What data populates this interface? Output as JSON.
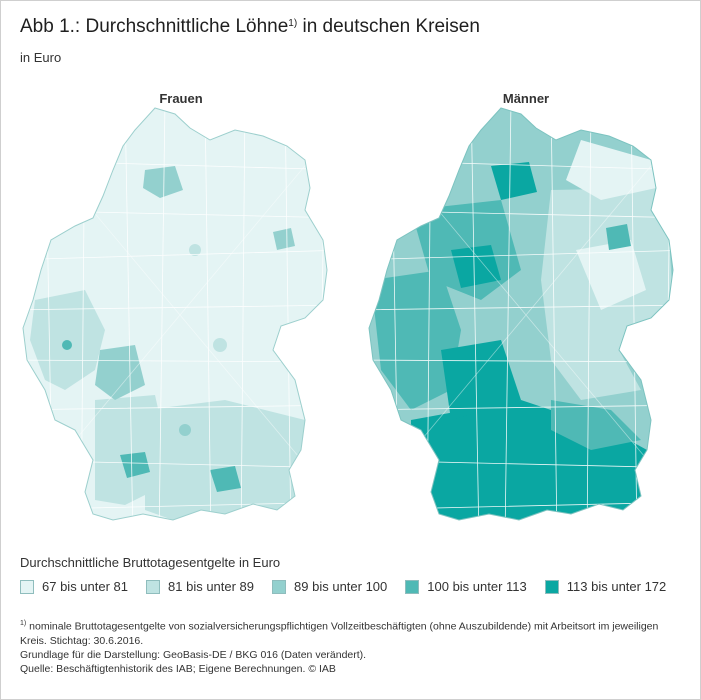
{
  "header": {
    "title": "Abb 1.: Durchschnittliche Löhne",
    "title_sup": "1)",
    "title_rest": " in deutschen Kreisen",
    "subtitle": "in Euro"
  },
  "maps": {
    "left_label": "Frauen",
    "right_label": "Männer"
  },
  "legend": {
    "title": "Durchschnittliche Bruttotagesentgelte in Euro",
    "items": [
      {
        "label": "67 bis unter 81",
        "color": "#e4f4f4"
      },
      {
        "label": "81 bis unter 89",
        "color": "#bfe3e2"
      },
      {
        "label": "89 bis unter 100",
        "color": "#93d0ce"
      },
      {
        "label": "100 bis unter 113",
        "color": "#4fb9b5"
      },
      {
        "label": "113 bis unter 172",
        "color": "#0aa7a2"
      }
    ]
  },
  "notes": {
    "sup": "1)",
    "line1": " nominale Bruttotagesentgelte von sozialversicherungspflichtigen Vollzeitbeschäftigten (ohne Auszubildende) mit Arbeitsort im jeweiligen Kreis. Stichtag: 30.6.2016.",
    "line2": "Grundlage für die Darstellung: GeoBasis-DE / BKG 016 (Daten verändert).",
    "line3": "Quelle: Beschäftigtenhistorik des IAB; Eigene Berechnungen. © IAB"
  }
}
